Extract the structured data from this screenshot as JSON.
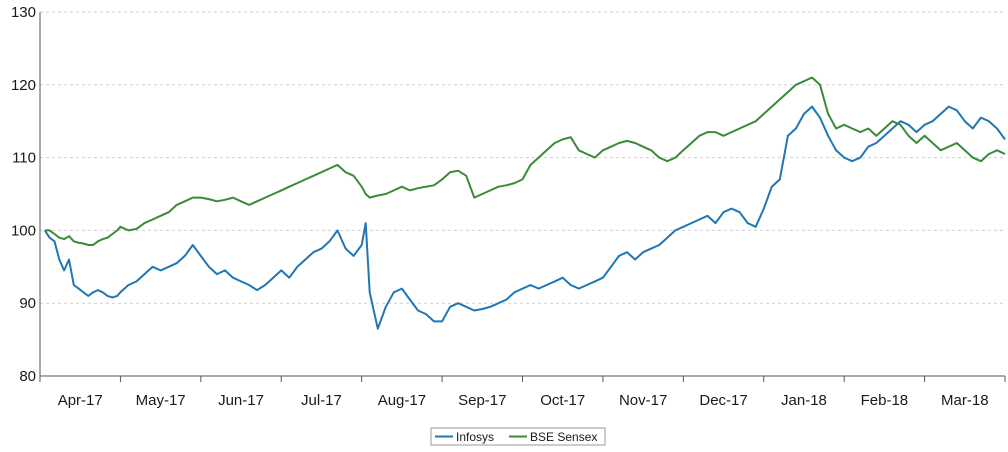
{
  "chart_data": {
    "type": "line",
    "title": "",
    "xlabel": "",
    "ylabel": "",
    "ylim": [
      80,
      130
    ],
    "yticks": [
      80,
      90,
      100,
      110,
      120,
      130
    ],
    "grid": "horizontal dashed",
    "legend_position": "bottom-center",
    "x_range": [
      0,
      12
    ],
    "categories": [
      "Apr-17",
      "May-17",
      "Jun-17",
      "Jul-17",
      "Aug-17",
      "Sep-17",
      "Oct-17",
      "Nov-17",
      "Dec-17",
      "Jan-18",
      "Feb-18",
      "Mar-18"
    ],
    "series": [
      {
        "name": "Infosys",
        "color": "#1f77b4",
        "x": [
          0.06,
          0.12,
          0.18,
          0.24,
          0.3,
          0.36,
          0.42,
          0.48,
          0.54,
          0.6,
          0.66,
          0.72,
          0.78,
          0.84,
          0.9,
          0.96,
          1.0,
          1.1,
          1.2,
          1.3,
          1.4,
          1.5,
          1.6,
          1.7,
          1.8,
          1.9,
          2.0,
          2.1,
          2.2,
          2.3,
          2.4,
          2.5,
          2.6,
          2.7,
          2.8,
          2.9,
          3.0,
          3.1,
          3.2,
          3.3,
          3.4,
          3.5,
          3.6,
          3.7,
          3.8,
          3.9,
          4.0,
          4.05,
          4.1,
          4.2,
          4.3,
          4.4,
          4.5,
          4.6,
          4.7,
          4.8,
          4.9,
          5.0,
          5.1,
          5.2,
          5.3,
          5.4,
          5.5,
          5.6,
          5.7,
          5.8,
          5.9,
          6.0,
          6.1,
          6.2,
          6.3,
          6.4,
          6.5,
          6.6,
          6.7,
          6.8,
          6.9,
          7.0,
          7.1,
          7.2,
          7.3,
          7.4,
          7.5,
          7.6,
          7.7,
          7.8,
          7.9,
          8.0,
          8.1,
          8.2,
          8.3,
          8.4,
          8.5,
          8.6,
          8.7,
          8.8,
          8.9,
          9.0,
          9.1,
          9.2,
          9.3,
          9.4,
          9.5,
          9.6,
          9.7,
          9.8,
          9.9,
          10.0,
          10.1,
          10.2,
          10.3,
          10.4,
          10.5,
          10.6,
          10.7,
          10.8,
          10.9,
          11.0,
          11.1,
          11.2,
          11.3,
          11.4,
          11.5,
          11.6,
          11.7,
          11.8,
          11.9,
          12.0
        ],
        "values": [
          100,
          99,
          98.5,
          96,
          94.5,
          96,
          92.5,
          92,
          91.5,
          91,
          91.5,
          91.8,
          91.5,
          91,
          90.8,
          91,
          91.5,
          92.5,
          93,
          94,
          95,
          94.5,
          95,
          95.5,
          96.5,
          98,
          96.5,
          95,
          94,
          94.5,
          93.5,
          93,
          92.5,
          91.8,
          92.5,
          93.5,
          94.5,
          93.5,
          95,
          96,
          97,
          97.5,
          98.5,
          100,
          97.5,
          96.5,
          98,
          101,
          91.5,
          86.5,
          89.5,
          91.5,
          92,
          90.5,
          89,
          88.5,
          87.5,
          87.5,
          89.5,
          90,
          89.5,
          89,
          89.2,
          89.5,
          90,
          90.5,
          91.5,
          92,
          92.5,
          92,
          92.5,
          93,
          93.5,
          92.5,
          92,
          92.5,
          93,
          93.5,
          95,
          96.5,
          97,
          96,
          97,
          97.5,
          98,
          99,
          100,
          100.5,
          101,
          101.5,
          102,
          101,
          102.5,
          103,
          102.5,
          101,
          100.5,
          103,
          106,
          107,
          113,
          114,
          116,
          117,
          115.5,
          113,
          111,
          110,
          109.5,
          110,
          111.5,
          112,
          113,
          114,
          115,
          114.5,
          113.5,
          114.5,
          115,
          116,
          117,
          116.5,
          115,
          114,
          115.5,
          115,
          114,
          112.5
        ]
      },
      {
        "name": "BSE Sensex",
        "color": "#3a8a3a",
        "x": [
          0.06,
          0.12,
          0.18,
          0.24,
          0.3,
          0.36,
          0.42,
          0.48,
          0.54,
          0.6,
          0.66,
          0.72,
          0.78,
          0.84,
          0.9,
          0.96,
          1.0,
          1.1,
          1.2,
          1.3,
          1.4,
          1.5,
          1.6,
          1.7,
          1.8,
          1.9,
          2.0,
          2.1,
          2.2,
          2.3,
          2.4,
          2.5,
          2.6,
          2.7,
          2.8,
          2.9,
          3.0,
          3.1,
          3.2,
          3.3,
          3.4,
          3.5,
          3.6,
          3.7,
          3.8,
          3.9,
          4.0,
          4.05,
          4.1,
          4.2,
          4.3,
          4.4,
          4.5,
          4.6,
          4.7,
          4.8,
          4.9,
          5.0,
          5.1,
          5.2,
          5.3,
          5.4,
          5.5,
          5.6,
          5.7,
          5.8,
          5.9,
          6.0,
          6.1,
          6.2,
          6.3,
          6.4,
          6.5,
          6.6,
          6.7,
          6.8,
          6.9,
          7.0,
          7.1,
          7.2,
          7.3,
          7.4,
          7.5,
          7.6,
          7.7,
          7.8,
          7.9,
          8.0,
          8.1,
          8.2,
          8.3,
          8.4,
          8.5,
          8.6,
          8.7,
          8.8,
          8.9,
          9.0,
          9.1,
          9.2,
          9.3,
          9.4,
          9.5,
          9.6,
          9.7,
          9.8,
          9.9,
          10.0,
          10.1,
          10.2,
          10.3,
          10.4,
          10.5,
          10.6,
          10.7,
          10.8,
          10.9,
          11.0,
          11.1,
          11.2,
          11.3,
          11.4,
          11.5,
          11.6,
          11.7,
          11.8,
          11.9,
          12.0
        ],
        "values": [
          100,
          100,
          99.5,
          99,
          98.8,
          99.2,
          98.5,
          98.3,
          98.2,
          98,
          98,
          98.5,
          98.8,
          99,
          99.5,
          100,
          100.5,
          100,
          100.2,
          101,
          101.5,
          102,
          102.5,
          103.5,
          104,
          104.5,
          104.5,
          104.3,
          104,
          104.2,
          104.5,
          104,
          103.5,
          104,
          104.5,
          105,
          105.5,
          106,
          106.5,
          107,
          107.5,
          108,
          108.5,
          109,
          108,
          107.5,
          106,
          105,
          104.5,
          104.8,
          105,
          105.5,
          106,
          105.5,
          105.8,
          106,
          106.2,
          107,
          108,
          108.2,
          107.5,
          104.5,
          105,
          105.5,
          106,
          106.2,
          106.5,
          107,
          109,
          110,
          111,
          112,
          112.5,
          112.8,
          111,
          110.5,
          110,
          111,
          111.5,
          112,
          112.3,
          112,
          111.5,
          111,
          110,
          109.5,
          110,
          111,
          112,
          113,
          113.5,
          113.5,
          113,
          113.5,
          114,
          114.5,
          115,
          116,
          117,
          118,
          119,
          120,
          120.5,
          121,
          120,
          116,
          114,
          114.5,
          114,
          113.5,
          114,
          113,
          114,
          115,
          114.5,
          113,
          112,
          113,
          112,
          111,
          111.5,
          112,
          111,
          110,
          109.5,
          110.5,
          111,
          110.5
        ]
      }
    ]
  }
}
